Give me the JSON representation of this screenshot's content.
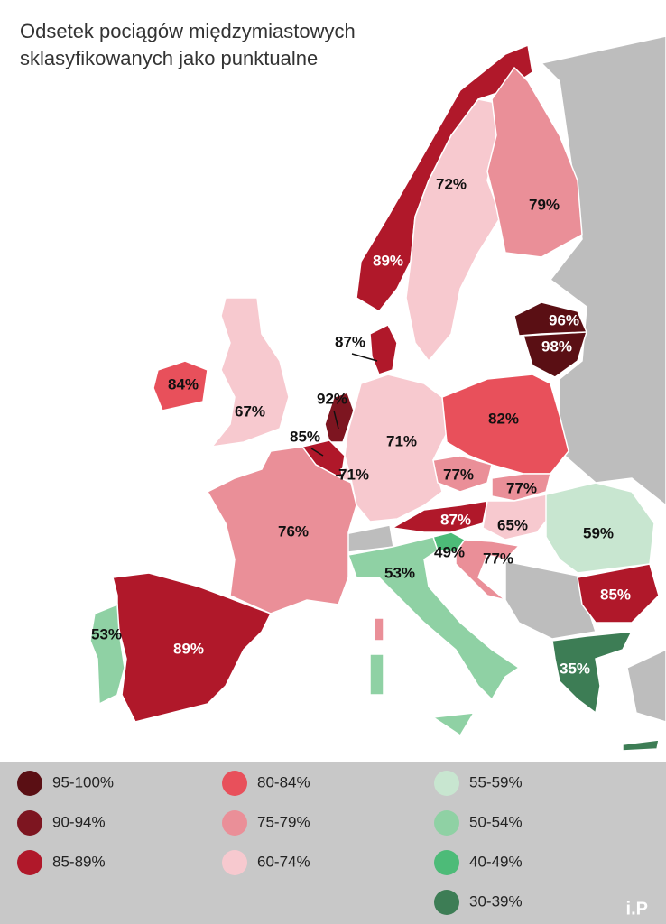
{
  "title": [
    "Odsetek pociągów międzymiastowych",
    "sklasyfikowanych jako punktualne"
  ],
  "regions": [
    {
      "label": "89%",
      "color": "#b0182a"
    },
    {
      "label": "72%",
      "color": "#f7c9cf"
    },
    {
      "label": "79%",
      "color": "#ea8f98"
    },
    {
      "label": "96%",
      "color": "#5a0f14"
    },
    {
      "label": "98%",
      "color": "#5a0f14"
    },
    {
      "label": "87%",
      "color": "#b0182a"
    },
    {
      "label": "84%",
      "color": "#e8505b"
    },
    {
      "label": "67%",
      "color": "#f7c9cf"
    },
    {
      "label": "92%",
      "color": "#7d1520"
    },
    {
      "label": "85%",
      "color": "#b0182a"
    },
    {
      "label": "71%",
      "color": "#f7c9cf"
    },
    {
      "label": "71%",
      "color": "#f7c9cf"
    },
    {
      "label": "82%",
      "color": "#e8505b"
    },
    {
      "label": "77%",
      "color": "#ea8f98"
    },
    {
      "label": "77%",
      "color": "#ea8f98"
    },
    {
      "label": "87%",
      "color": "#b0182a"
    },
    {
      "label": "65%",
      "color": "#f7c9cf"
    },
    {
      "label": "49%",
      "color": "#4dbb78"
    },
    {
      "label": "77%",
      "color": "#ea8f98"
    },
    {
      "label": "59%",
      "color": "#c8e6d0"
    },
    {
      "label": "85%",
      "color": "#b0182a"
    },
    {
      "label": "53%",
      "color": "#8fd1a4"
    },
    {
      "label": "76%",
      "color": "#ea8f98"
    },
    {
      "label": "89%",
      "color": "#b0182a"
    },
    {
      "label": "53%",
      "color": "#8fd1a4"
    },
    {
      "label": "35%",
      "color": "#3d7d55"
    }
  ],
  "legend": [
    {
      "label": "95-100%",
      "color": "#5a0f14"
    },
    {
      "label": "90-94%",
      "color": "#7d1520"
    },
    {
      "label": "85-89%",
      "color": "#b0182a"
    },
    {
      "label": "80-84%",
      "color": "#e8505b"
    },
    {
      "label": "75-79%",
      "color": "#ea8f98"
    },
    {
      "label": "60-74%",
      "color": "#f7c9cf"
    },
    {
      "label": "55-59%",
      "color": "#c8e6d0"
    },
    {
      "label": "50-54%",
      "color": "#8fd1a4"
    },
    {
      "label": "40-49%",
      "color": "#4dbb78"
    },
    {
      "label": "30-39%",
      "color": "#3d7d55"
    }
  ],
  "logo": "i.P"
}
